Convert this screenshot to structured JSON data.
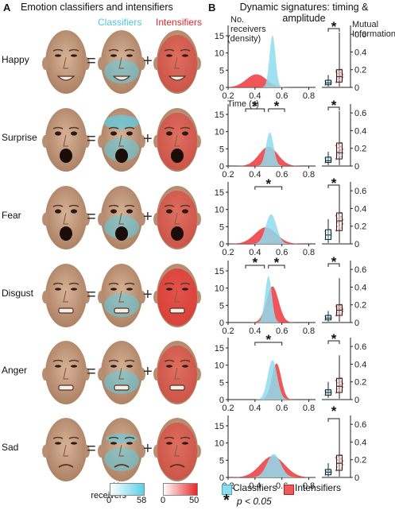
{
  "panel_a": {
    "letter": "A",
    "title": "Emotion classifiers and intensifiers",
    "col_classifiers": "Classifiers",
    "col_intensifiers": "Intensifiers",
    "equals": "=",
    "plus": "+",
    "colorbar_label": "No. receivers",
    "classifier_range": [
      "0",
      "58"
    ],
    "intensifier_range": [
      "0",
      "50"
    ],
    "colors": {
      "classifiers": "#5bd0e8",
      "intensifiers": "#e8282a",
      "skin": "#c9a184"
    }
  },
  "panel_b": {
    "letter": "B",
    "title": "Dynamic signatures: timing & amplitude",
    "left_axis_label": "No. receivers (density)",
    "right_axis_label": "Mutual Information",
    "x_axis_label": "Time (s)",
    "legend_classifiers": "Classifiers",
    "legend_intensifiers": "Intensifiers",
    "significance_star": "*",
    "significance_note": "p < 0.05"
  },
  "chart_data": [
    {
      "type": "area",
      "emotion": "Happy",
      "x_ticks": [
        "0.2",
        "0.4",
        "0.6",
        "0.8"
      ],
      "y_ticks": [
        "0",
        "5",
        "10",
        "15"
      ],
      "xlim": [
        0.2,
        0.85
      ],
      "ylim": [
        0,
        18
      ],
      "series": [
        {
          "name": "Classifiers",
          "peak_x": 0.53,
          "peak_y": 15.2,
          "sd": 0.022
        },
        {
          "name": "Intensifiers",
          "peak_x": 0.41,
          "peak_y": 3.8,
          "sd": 0.075
        }
      ],
      "significance": [
        "*"
      ],
      "mutual_information": {
        "ylim": [
          0,
          0.7
        ],
        "ticks": [
          "0",
          "0.2",
          "0.4",
          "0.6"
        ],
        "classifiers": {
          "median": 0.05,
          "q1": 0.03,
          "q3": 0.08,
          "min": 0.01,
          "max": 0.14
        },
        "intensifiers": {
          "median": 0.12,
          "q1": 0.06,
          "q3": 0.2,
          "min": 0.01,
          "max": 0.62
        }
      }
    },
    {
      "type": "area",
      "emotion": "Surprise",
      "x_ticks": [
        "0.2",
        "0.4",
        "0.6",
        "0.8"
      ],
      "y_ticks": [
        "0",
        "5",
        "10",
        "15"
      ],
      "xlim": [
        0.2,
        0.85
      ],
      "ylim": [
        0,
        18
      ],
      "series": [
        {
          "name": "Classifiers",
          "peak_x": 0.51,
          "peak_y": 9.8,
          "sd": 0.028
        },
        {
          "name": "Intensifiers",
          "peak_x": 0.5,
          "peak_y": 5.6,
          "sd": 0.07
        }
      ],
      "significance": [
        "*",
        "*",
        "*"
      ],
      "mutual_information": {
        "ylim": [
          0,
          0.7
        ],
        "ticks": [
          "0",
          "0.2",
          "0.4",
          "0.6"
        ],
        "classifiers": {
          "median": 0.06,
          "q1": 0.04,
          "q3": 0.1,
          "min": 0.01,
          "max": 0.16
        },
        "intensifiers": {
          "median": 0.15,
          "q1": 0.08,
          "q3": 0.26,
          "min": 0.01,
          "max": 0.62
        }
      }
    },
    {
      "type": "area",
      "emotion": "Fear",
      "x_ticks": [
        "0.2",
        "0.4",
        "0.6",
        "0.8"
      ],
      "y_ticks": [
        "0",
        "5",
        "10",
        "15"
      ],
      "xlim": [
        0.2,
        0.85
      ],
      "ylim": [
        0,
        18
      ],
      "series": [
        {
          "name": "Classifiers",
          "peak_x": 0.52,
          "peak_y": 8.6,
          "sd": 0.04
        },
        {
          "name": "Intensifiers",
          "peak_x": 0.48,
          "peak_y": 4.8,
          "sd": 0.08
        }
      ],
      "significance": [
        "*",
        "*"
      ],
      "mutual_information": {
        "ylim": [
          0,
          0.7
        ],
        "ticks": [
          "0",
          "0.2",
          "0.4",
          "0.6"
        ],
        "classifiers": {
          "median": 0.1,
          "q1": 0.05,
          "q3": 0.16,
          "min": 0.01,
          "max": 0.28
        },
        "intensifiers": {
          "median": 0.26,
          "q1": 0.15,
          "q3": 0.35,
          "min": 0.01,
          "max": 0.64
        }
      }
    },
    {
      "type": "area",
      "emotion": "Disgust",
      "x_ticks": [
        "0.2",
        "0.4",
        "0.6",
        "0.8"
      ],
      "y_ticks": [
        "0",
        "5",
        "10",
        "15"
      ],
      "xlim": [
        0.2,
        0.85
      ],
      "ylim": [
        0,
        18
      ],
      "series": [
        {
          "name": "Classifiers",
          "peak_x": 0.5,
          "peak_y": 13.5,
          "sd": 0.025
        },
        {
          "name": "Intensifiers",
          "peak_x": 0.53,
          "peak_y": 10.5,
          "sd": 0.045
        }
      ],
      "significance": [
        "*",
        "*",
        "*"
      ],
      "mutual_information": {
        "ylim": [
          0,
          0.7
        ],
        "ticks": [
          "0",
          "0.2",
          "0.4",
          "0.6"
        ],
        "classifiers": {
          "median": 0.05,
          "q1": 0.03,
          "q3": 0.08,
          "min": 0.01,
          "max": 0.13
        },
        "intensifiers": {
          "median": 0.14,
          "q1": 0.08,
          "q3": 0.2,
          "min": 0.01,
          "max": 0.5
        }
      }
    },
    {
      "type": "area",
      "emotion": "Anger",
      "x_ticks": [
        "0.2",
        "0.4",
        "0.6",
        "0.8"
      ],
      "y_ticks": [
        "0",
        "5",
        "10",
        "15"
      ],
      "xlim": [
        0.2,
        0.85
      ],
      "ylim": [
        0,
        18
      ],
      "series": [
        {
          "name": "Classifiers",
          "peak_x": 0.53,
          "peak_y": 11.5,
          "sd": 0.035
        },
        {
          "name": "Intensifiers",
          "peak_x": 0.56,
          "peak_y": 10.5,
          "sd": 0.035
        }
      ],
      "significance": [
        "*",
        "*"
      ],
      "mutual_information": {
        "ylim": [
          0,
          0.7
        ],
        "ticks": [
          "0",
          "0.2",
          "0.4",
          "0.6"
        ],
        "classifiers": {
          "median": 0.08,
          "q1": 0.05,
          "q3": 0.11,
          "min": 0.02,
          "max": 0.2
        },
        "intensifiers": {
          "median": 0.15,
          "q1": 0.08,
          "q3": 0.24,
          "min": 0.01,
          "max": 0.5
        }
      }
    },
    {
      "type": "area",
      "emotion": "Sad",
      "x_ticks": [
        "0.2",
        "0.4",
        "0.6",
        "0.8"
      ],
      "y_ticks": [
        "0",
        "5",
        "10",
        "15"
      ],
      "xlim": [
        0.2,
        0.85
      ],
      "ylim": [
        0,
        18
      ],
      "series": [
        {
          "name": "Classifiers",
          "peak_x": 0.54,
          "peak_y": 6.8,
          "sd": 0.05
        },
        {
          "name": "Intensifiers",
          "peak_x": 0.53,
          "peak_y": 6.2,
          "sd": 0.09
        }
      ],
      "significance": [
        "*"
      ],
      "mutual_information": {
        "ylim": [
          0,
          0.7
        ],
        "ticks": [
          "0",
          "0.2",
          "0.4",
          "0.6"
        ],
        "classifiers": {
          "median": 0.06,
          "q1": 0.03,
          "q3": 0.09,
          "min": 0.01,
          "max": 0.16
        },
        "intensifiers": {
          "median": 0.16,
          "q1": 0.08,
          "q3": 0.25,
          "min": 0.01,
          "max": 0.64
        }
      }
    }
  ]
}
